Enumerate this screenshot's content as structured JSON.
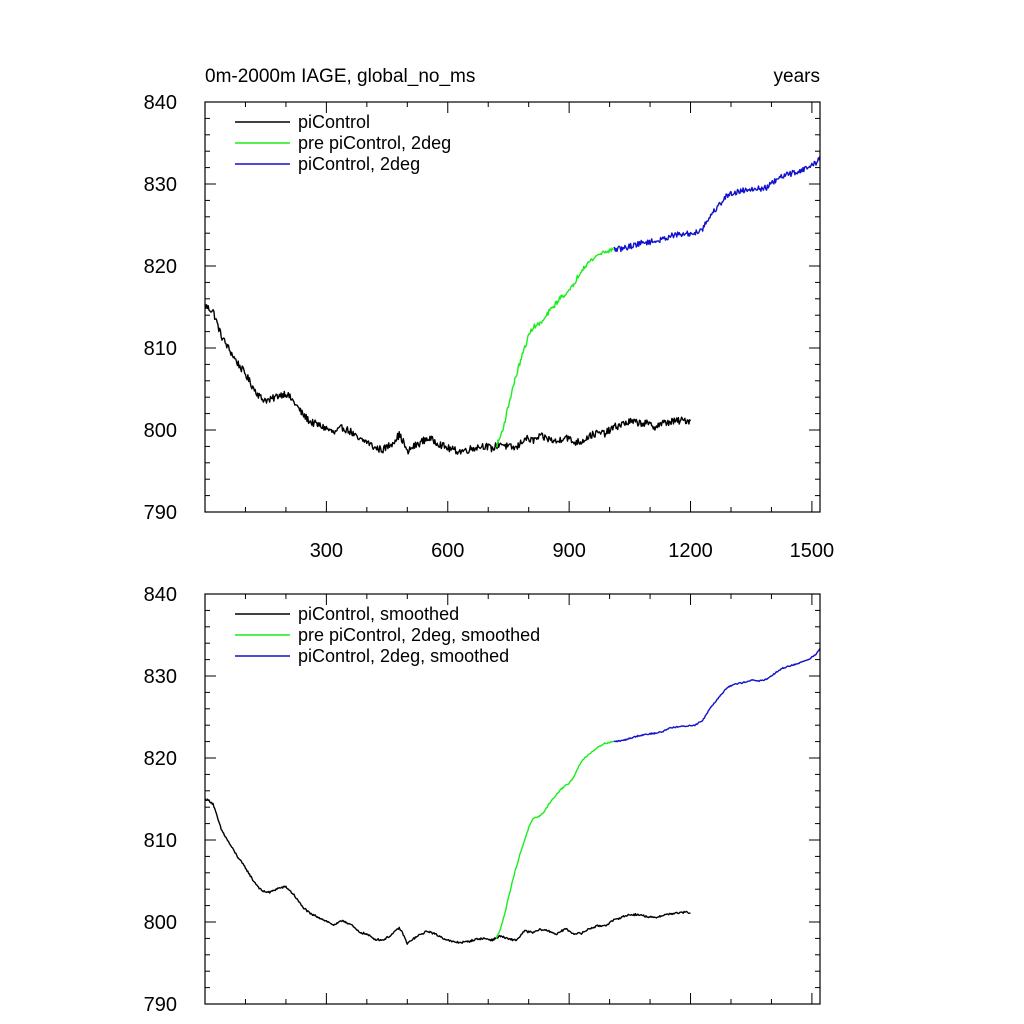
{
  "chart_data": [
    {
      "type": "line",
      "title_left": "0m-2000m IAGE, global_no_ms",
      "title_right": "years",
      "xlim": [
        0,
        1520
      ],
      "ylim": [
        790,
        840
      ],
      "x_ticks": [
        300,
        600,
        900,
        1200,
        1500
      ],
      "x_tick_labels": [
        "300",
        "600",
        "900",
        "1200",
        "1500"
      ],
      "y_ticks": [
        790,
        800,
        810,
        820,
        830,
        840
      ],
      "y_tick_labels": [
        "790",
        "800",
        "810",
        "820",
        "830",
        "840"
      ],
      "series": [
        {
          "name": "piControl",
          "color": "#000000",
          "noise": 0.45,
          "x": [
            0,
            10,
            20,
            40,
            60,
            80,
            100,
            120,
            140,
            160,
            180,
            200,
            220,
            240,
            260,
            280,
            300,
            320,
            340,
            360,
            380,
            400,
            420,
            440,
            460,
            480,
            490,
            500,
            510,
            530,
            550,
            570,
            590,
            610,
            630,
            650,
            670,
            690,
            710,
            730,
            750,
            770,
            790,
            810,
            830,
            850,
            870,
            890,
            910,
            930,
            950,
            970,
            990,
            1010,
            1030,
            1050,
            1070,
            1090,
            1110,
            1130,
            1150,
            1170,
            1190,
            1200
          ],
          "values": [
            815.2,
            814.8,
            814.5,
            811.5,
            809.8,
            808.2,
            806.8,
            805.1,
            803.8,
            803.6,
            804.2,
            804.5,
            803.4,
            802.0,
            801.0,
            800.6,
            800.2,
            799.6,
            800.3,
            799.8,
            798.8,
            798.6,
            797.8,
            797.6,
            798.3,
            799.4,
            798.6,
            797.2,
            797.8,
            798.4,
            799.0,
            798.6,
            798.0,
            797.6,
            797.4,
            797.6,
            797.9,
            798.1,
            797.7,
            798.4,
            797.9,
            797.8,
            799.0,
            798.7,
            799.2,
            798.9,
            798.5,
            799.3,
            798.5,
            798.6,
            799.3,
            799.6,
            799.6,
            800.3,
            800.7,
            801.0,
            800.9,
            800.8,
            800.4,
            800.8,
            801.0,
            801.1,
            801.2,
            801.1
          ]
        },
        {
          "name": "pre piControl, 2deg",
          "color": "#1aee1a",
          "noise": 0.3,
          "x": [
            720,
            730,
            740,
            750,
            760,
            770,
            780,
            790,
            800,
            810,
            820,
            830,
            840,
            850,
            860,
            870,
            880,
            890,
            900,
            910,
            920,
            930,
            940,
            950,
            960,
            970,
            980,
            990,
            1000,
            1010
          ],
          "values": [
            798.0,
            799.2,
            800.8,
            803.0,
            805.0,
            806.8,
            808.5,
            810.0,
            811.5,
            812.5,
            812.8,
            813.0,
            813.6,
            814.4,
            815.0,
            815.6,
            816.2,
            816.6,
            816.9,
            817.6,
            818.6,
            819.5,
            820.1,
            820.5,
            820.9,
            821.3,
            821.6,
            821.8,
            821.9,
            822.0
          ]
        },
        {
          "name": "piControl, 2deg",
          "color": "#1111cc",
          "noise": 0.35,
          "x": [
            1010,
            1030,
            1050,
            1070,
            1090,
            1110,
            1130,
            1150,
            1170,
            1190,
            1210,
            1230,
            1250,
            1270,
            1290,
            1310,
            1330,
            1350,
            1370,
            1390,
            1410,
            1430,
            1450,
            1470,
            1490,
            1510,
            1520
          ],
          "values": [
            822.0,
            822.1,
            822.4,
            822.7,
            822.9,
            823.0,
            823.2,
            823.7,
            823.8,
            823.9,
            824.0,
            824.6,
            826.2,
            827.4,
            828.6,
            829.0,
            829.2,
            829.5,
            829.4,
            829.6,
            830.4,
            831.0,
            831.3,
            831.6,
            832.0,
            832.6,
            833.4
          ]
        }
      ],
      "legend": [
        "piControl",
        "pre piControl, 2deg",
        "piControl, 2deg"
      ]
    },
    {
      "type": "line",
      "xlim": [
        0,
        1520
      ],
      "ylim": [
        790,
        840
      ],
      "x_ticks": [
        300,
        600,
        900,
        1200,
        1500
      ],
      "y_ticks": [
        790,
        800,
        810,
        820,
        830,
        840
      ],
      "y_tick_labels": [
        "790",
        "800",
        "810",
        "820",
        "830",
        "840"
      ],
      "series": [
        {
          "name": "piControl, smoothed",
          "color": "#000000",
          "noise": 0.12,
          "x": [
            0,
            10,
            20,
            40,
            60,
            80,
            100,
            120,
            140,
            160,
            180,
            200,
            220,
            240,
            260,
            280,
            300,
            320,
            340,
            360,
            380,
            400,
            420,
            440,
            460,
            480,
            490,
            500,
            510,
            530,
            550,
            570,
            590,
            610,
            630,
            650,
            670,
            690,
            710,
            730,
            750,
            770,
            790,
            810,
            830,
            850,
            870,
            890,
            910,
            930,
            950,
            970,
            990,
            1010,
            1030,
            1050,
            1070,
            1090,
            1110,
            1130,
            1150,
            1170,
            1190,
            1200
          ],
          "values": [
            815.0,
            814.8,
            814.4,
            811.3,
            809.6,
            808.0,
            806.6,
            805.0,
            803.8,
            803.6,
            804.1,
            804.3,
            803.3,
            801.9,
            801.0,
            800.6,
            800.1,
            799.6,
            800.2,
            799.7,
            798.8,
            798.5,
            797.9,
            797.8,
            798.4,
            799.3,
            798.5,
            797.3,
            797.8,
            798.4,
            798.9,
            798.5,
            798.0,
            797.6,
            797.5,
            797.6,
            797.9,
            798.0,
            797.8,
            798.3,
            797.9,
            797.8,
            798.9,
            798.7,
            799.1,
            798.9,
            798.5,
            799.2,
            798.6,
            798.6,
            799.2,
            799.5,
            799.6,
            800.2,
            800.6,
            800.9,
            800.9,
            800.7,
            800.5,
            800.8,
            801.0,
            801.1,
            801.2,
            801.1
          ]
        },
        {
          "name": "pre piControl, 2deg, smoothed",
          "color": "#1aee1a",
          "noise": 0.08,
          "x": [
            720,
            730,
            740,
            750,
            760,
            770,
            780,
            790,
            800,
            810,
            820,
            830,
            840,
            850,
            860,
            870,
            880,
            890,
            900,
            910,
            920,
            930,
            940,
            950,
            960,
            970,
            980,
            990,
            1000,
            1010
          ],
          "values": [
            798.0,
            799.2,
            800.8,
            803.0,
            805.0,
            806.8,
            808.5,
            810.0,
            811.5,
            812.5,
            812.8,
            813.0,
            813.6,
            814.4,
            815.0,
            815.6,
            816.2,
            816.6,
            816.9,
            817.6,
            818.6,
            819.5,
            820.1,
            820.5,
            820.9,
            821.3,
            821.6,
            821.8,
            821.9,
            822.0
          ]
        },
        {
          "name": "piControl, 2deg, smoothed",
          "color": "#1111cc",
          "noise": 0.08,
          "x": [
            1010,
            1030,
            1050,
            1070,
            1090,
            1110,
            1130,
            1150,
            1170,
            1190,
            1210,
            1230,
            1250,
            1270,
            1290,
            1310,
            1330,
            1350,
            1370,
            1390,
            1410,
            1430,
            1450,
            1470,
            1490,
            1510,
            1520
          ],
          "values": [
            822.0,
            822.1,
            822.4,
            822.7,
            822.9,
            823.0,
            823.2,
            823.7,
            823.8,
            823.9,
            824.0,
            824.6,
            826.2,
            827.4,
            828.6,
            829.0,
            829.2,
            829.5,
            829.4,
            829.6,
            830.4,
            831.0,
            831.3,
            831.6,
            832.0,
            832.6,
            833.4
          ]
        }
      ],
      "legend": [
        "piControl, smoothed",
        "pre piControl, 2deg, smoothed",
        "piControl, 2deg, smoothed"
      ]
    }
  ]
}
